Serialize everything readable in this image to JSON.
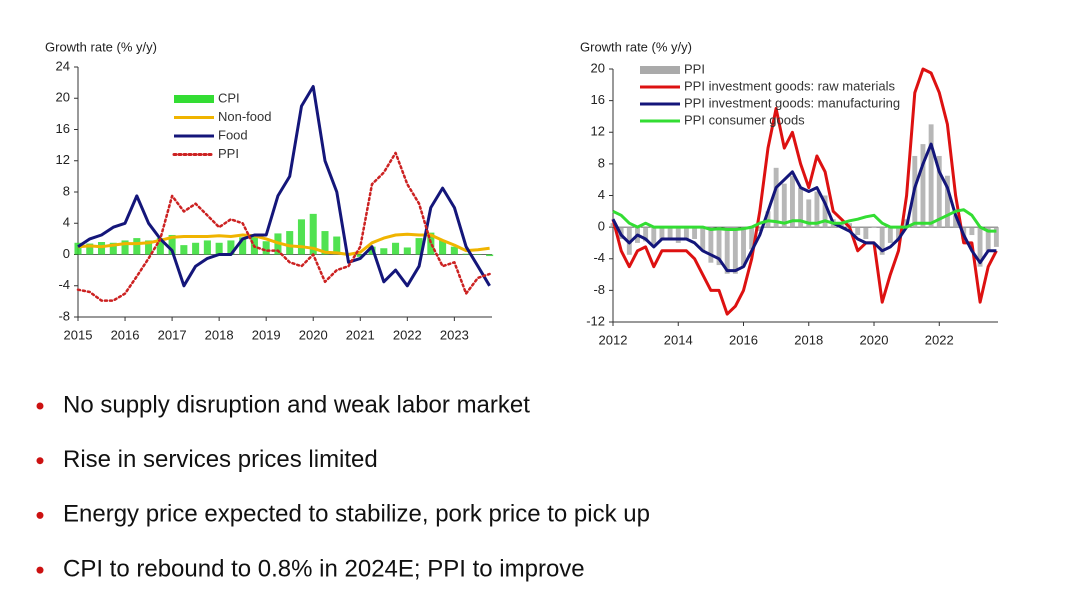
{
  "chart_data": [
    {
      "type": "combo",
      "ylabel": "Growth rate (% y/y)",
      "legend": "upper center",
      "x": [
        2015,
        2015.25,
        2015.5,
        2015.75,
        2016,
        2016.25,
        2016.5,
        2016.75,
        2017,
        2017.25,
        2017.5,
        2017.75,
        2018,
        2018.25,
        2018.5,
        2018.75,
        2019,
        2019.25,
        2019.5,
        2019.75,
        2020,
        2020.25,
        2020.5,
        2020.75,
        2021,
        2021.25,
        2021.5,
        2021.75,
        2022,
        2022.25,
        2022.5,
        2022.75,
        2023,
        2023.25,
        2023.5,
        2023.75
      ],
      "xlim": [
        2015,
        2023.8
      ],
      "xticks": [
        2015,
        2016,
        2017,
        2018,
        2019,
        2020,
        2021,
        2022,
        2023
      ],
      "ylim": [
        -8,
        24
      ],
      "yticks": [
        -8,
        -4,
        0,
        4,
        8,
        12,
        16,
        20,
        24
      ],
      "series": [
        {
          "name": "CPI",
          "color": "#33dd33",
          "style": "bar",
          "values": [
            1.5,
            1.4,
            1.6,
            1.5,
            1.8,
            2.1,
            1.8,
            2.1,
            2.5,
            1.2,
            1.5,
            1.8,
            1.5,
            1.8,
            2.2,
            2.5,
            1.7,
            2.7,
            3.0,
            4.5,
            5.2,
            3.0,
            2.3,
            0.0,
            -0.3,
            1.0,
            0.8,
            1.5,
            0.9,
            2.1,
            2.8,
            1.8,
            1.0,
            0.1,
            0.0,
            -0.2
          ]
        },
        {
          "name": "Non-food",
          "color": "#f0b400",
          "style": "line",
          "values": [
            1.0,
            1.1,
            1.0,
            1.2,
            1.4,
            1.4,
            1.5,
            1.8,
            2.2,
            2.3,
            2.3,
            2.3,
            2.4,
            2.3,
            2.5,
            2.4,
            2.0,
            1.5,
            1.1,
            1.0,
            0.8,
            0.3,
            0.2,
            0.0,
            0.3,
            1.5,
            2.1,
            2.5,
            2.6,
            2.5,
            2.5,
            1.8,
            1.2,
            0.5,
            0.6,
            0.8
          ]
        },
        {
          "name": "Food",
          "color": "#14167a",
          "style": "line",
          "values": [
            1.0,
            2.0,
            2.5,
            3.5,
            4.0,
            7.5,
            4.0,
            2.0,
            0.5,
            -4.0,
            -1.5,
            -0.5,
            0.0,
            0.0,
            2.0,
            2.5,
            2.5,
            7.5,
            10.0,
            19.0,
            21.5,
            12.0,
            8.0,
            -1.0,
            -0.5,
            1.0,
            -3.5,
            -2.0,
            -4.0,
            -1.5,
            6.0,
            8.5,
            6.0,
            1.0,
            -1.5,
            -4.0
          ]
        },
        {
          "name": "PPI",
          "color": "#cc2222",
          "style": "dotted",
          "values": [
            -4.5,
            -4.8,
            -5.9,
            -5.9,
            -5.0,
            -2.8,
            -0.5,
            2.0,
            7.5,
            5.5,
            6.5,
            5.0,
            3.5,
            4.5,
            4.0,
            1.0,
            0.5,
            0.5,
            -1.0,
            -1.5,
            0.0,
            -3.5,
            -2.0,
            -1.5,
            1.0,
            9.0,
            10.5,
            13.0,
            9.0,
            6.5,
            1.5,
            -1.5,
            -1.0,
            -5.0,
            -3.0,
            -2.5
          ]
        }
      ]
    },
    {
      "type": "combo",
      "ylabel": "Growth rate (% y/y)",
      "legend": "upper left",
      "x": [
        2012,
        2012.25,
        2012.5,
        2012.75,
        2013,
        2013.25,
        2013.5,
        2013.75,
        2014,
        2014.25,
        2014.5,
        2014.75,
        2015,
        2015.25,
        2015.5,
        2015.75,
        2016,
        2016.25,
        2016.5,
        2016.75,
        2017,
        2017.25,
        2017.5,
        2017.75,
        2018,
        2018.25,
        2018.5,
        2018.75,
        2019,
        2019.25,
        2019.5,
        2019.75,
        2020,
        2020.25,
        2020.5,
        2020.75,
        2021,
        2021.25,
        2021.5,
        2021.75,
        2022,
        2022.25,
        2022.5,
        2022.75,
        2023,
        2023.25,
        2023.5,
        2023.75
      ],
      "xlim": [
        2012,
        2023.8
      ],
      "xticks": [
        2012,
        2014,
        2016,
        2018,
        2020,
        2022
      ],
      "ylim": [
        -12,
        20
      ],
      "yticks": [
        -12,
        -8,
        -4,
        0,
        4,
        8,
        12,
        16,
        20
      ],
      "series": [
        {
          "name": "PPI",
          "color": "#aaaaaa",
          "style": "bar",
          "values": [
            0.5,
            -1.5,
            -3.5,
            -2,
            -1.8,
            -2.5,
            -1.5,
            -1.5,
            -2,
            -1.5,
            -1.5,
            -3,
            -4.5,
            -4.8,
            -5.9,
            -5.9,
            -5,
            -2.8,
            -0.5,
            2,
            7.5,
            5.5,
            6.5,
            5,
            3.5,
            4.5,
            4,
            1,
            0.5,
            0.5,
            -1,
            -1.5,
            0,
            -3.5,
            -2,
            -1.5,
            1,
            9,
            10.5,
            13,
            9,
            6.5,
            1.5,
            -1.5,
            -1,
            -5,
            -3,
            -2.5
          ]
        },
        {
          "name": "PPI investment goods: raw materials",
          "color": "#dd1111",
          "style": "line",
          "values": [
            1,
            -3,
            -5,
            -3,
            -2.5,
            -5,
            -3,
            -3,
            -3,
            -3,
            -4,
            -6,
            -8,
            -8,
            -11,
            -10,
            -8,
            -4,
            2,
            10,
            15,
            10,
            12,
            8,
            5,
            9,
            7,
            2,
            1,
            0,
            -3,
            -2,
            -2,
            -9.5,
            -6,
            -3,
            4,
            17,
            20,
            19.5,
            17,
            13,
            4,
            -2,
            -2,
            -9.5,
            -5,
            -3
          ]
        },
        {
          "name": "PPI investment goods: manufacturing",
          "color": "#14167a",
          "style": "line",
          "values": [
            1,
            -1,
            -2,
            -1,
            -1.5,
            -2.5,
            -1.5,
            -1.5,
            -1.5,
            -1.5,
            -2,
            -3,
            -3.5,
            -4,
            -5.5,
            -5.5,
            -5,
            -3,
            -1,
            2,
            5,
            6,
            7,
            5,
            4.5,
            5,
            3,
            0.5,
            0,
            -0.5,
            -1.5,
            -2,
            -2,
            -3,
            -2.5,
            -1.5,
            0,
            5,
            8,
            10.5,
            7,
            5,
            1.5,
            -1,
            -3,
            -4.5,
            -3,
            -3
          ]
        },
        {
          "name": "PPI consumer goods",
          "color": "#33dd33",
          "style": "line",
          "values": [
            2,
            1.5,
            0.5,
            0,
            0.5,
            0,
            0,
            0,
            0,
            0,
            0,
            0,
            -0.3,
            -0.2,
            -0.3,
            -0.3,
            -0.2,
            0,
            0.5,
            0.8,
            0.7,
            0.5,
            0.8,
            0.8,
            0.5,
            0.5,
            0.8,
            0.5,
            0.5,
            0.8,
            1,
            1.3,
            1.5,
            0.5,
            0,
            0,
            0,
            0.5,
            0.5,
            0.5,
            1,
            1.5,
            2,
            2.2,
            1.5,
            0,
            -0.5,
            -0.5
          ]
        }
      ]
    }
  ],
  "bullets": [
    "No supply disruption and weak labor market",
    "Rise in services prices limited",
    "Energy price expected to stabilize, pork price to pick up",
    "CPI to rebound to 0.8% in 2024E; PPI to improve"
  ]
}
